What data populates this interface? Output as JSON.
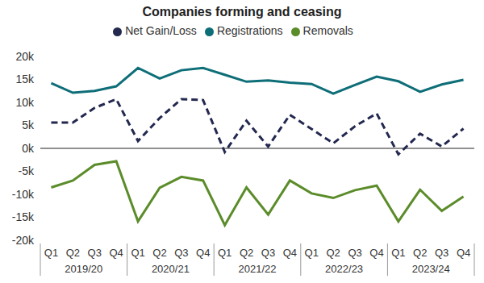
{
  "chart_data": {
    "type": "line",
    "title": "Companies forming and ceasing",
    "categories": [
      "Q1",
      "Q2",
      "Q3",
      "Q4",
      "Q1",
      "Q2",
      "Q3",
      "Q4",
      "Q1",
      "Q2",
      "Q3",
      "Q4",
      "Q1",
      "Q2",
      "Q3",
      "Q4",
      "Q1",
      "Q2",
      "Q3",
      "Q4"
    ],
    "category_groups": [
      "2019/20",
      "2020/21",
      "2021/22",
      "2022/23",
      "2023/24"
    ],
    "series": [
      {
        "name": "Registrations",
        "color": "#0e6e78",
        "line_style": "solid",
        "values": [
          14200,
          12100,
          12500,
          13500,
          17500,
          15200,
          17000,
          17500,
          16000,
          14500,
          14800,
          14300,
          14000,
          11900,
          13800,
          15600,
          14600,
          12300,
          13900,
          14900
        ]
      },
      {
        "name": "Net Gain/Loss",
        "color": "#23284f",
        "line_style": "dashed",
        "values": [
          5600,
          5600,
          8800,
          10700,
          1600,
          6600,
          10700,
          10500,
          -800,
          6000,
          400,
          7300,
          4200,
          1100,
          4800,
          7600,
          -1300,
          3200,
          400,
          4300
        ]
      },
      {
        "name": "Removals",
        "color": "#5b8c2a",
        "line_style": "solid",
        "values": [
          -8500,
          -7000,
          -3600,
          -2800,
          -15900,
          -8600,
          -6200,
          -7000,
          -16700,
          -8500,
          -14400,
          -7000,
          -9800,
          -10800,
          -9100,
          -8100,
          -15900,
          -9000,
          -13600,
          -10500
        ]
      }
    ],
    "ylim": [
      -20000,
      20000
    ],
    "yticks": [
      {
        "value": -20000,
        "label": "-20k"
      },
      {
        "value": -15000,
        "label": "-15k"
      },
      {
        "value": -10000,
        "label": "-10k"
      },
      {
        "value": -5000,
        "label": "-5k"
      },
      {
        "value": 0,
        "label": "0k"
      },
      {
        "value": 5000,
        "label": "5k"
      },
      {
        "value": 10000,
        "label": "10k"
      },
      {
        "value": 15000,
        "label": "15k"
      },
      {
        "value": 20000,
        "label": "20k"
      }
    ],
    "legend": "top",
    "grid": false
  }
}
